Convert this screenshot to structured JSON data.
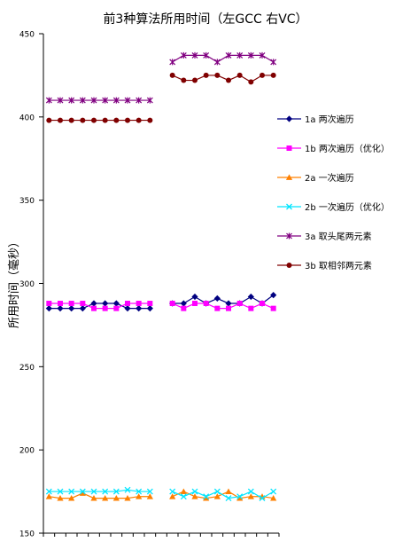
{
  "chart_data": {
    "type": "line",
    "title": "前3种算法所用时间（左GCC 右VC）",
    "xlabel": "",
    "ylabel": "所用时间（毫秒）",
    "ylim": [
      150,
      450
    ],
    "yticks": [
      150,
      200,
      250,
      300,
      350,
      400,
      450
    ],
    "grid": false,
    "legend_position": "right",
    "groups": [
      "GCC",
      "VC"
    ],
    "points_per_group": 10,
    "series": [
      {
        "name": "1a 两次遍历",
        "color": "#000080",
        "marker": "diamond",
        "values": [
          [
            285,
            285,
            285,
            285,
            288,
            288,
            288,
            285,
            285,
            285
          ],
          [
            288,
            288,
            292,
            288,
            291,
            288,
            288,
            292,
            288,
            293
          ]
        ]
      },
      {
        "name": "1b 两次遍历（优化）",
        "color": "#ff00ff",
        "marker": "square",
        "values": [
          [
            288,
            288,
            288,
            288,
            285,
            285,
            285,
            288,
            288,
            288
          ],
          [
            288,
            285,
            288,
            288,
            285,
            285,
            288,
            285,
            288,
            285
          ]
        ]
      },
      {
        "name": "2a 一次遍历",
        "color": "#ff8000",
        "marker": "triangle",
        "values": [
          [
            172,
            171,
            171,
            174,
            171,
            171,
            171,
            171,
            172,
            172
          ],
          [
            172,
            175,
            172,
            171,
            172,
            175,
            171,
            172,
            172,
            171
          ]
        ]
      },
      {
        "name": "2b 一次遍历（优化）",
        "color": "#00e5ff",
        "marker": "x",
        "values": [
          [
            175,
            175,
            175,
            175,
            175,
            175,
            175,
            176,
            175,
            175
          ],
          [
            175,
            172,
            175,
            172,
            175,
            171,
            172,
            175,
            171,
            175
          ]
        ]
      },
      {
        "name": "3a 取头尾两元素",
        "color": "#800080",
        "marker": "star",
        "values": [
          [
            410,
            410,
            410,
            410,
            410,
            410,
            410,
            410,
            410,
            410
          ],
          [
            433,
            437,
            437,
            437,
            433,
            437,
            437,
            437,
            437,
            433
          ]
        ]
      },
      {
        "name": "3b 取相邻两元素",
        "color": "#800000",
        "marker": "circle",
        "values": [
          [
            398,
            398,
            398,
            398,
            398,
            398,
            398,
            398,
            398,
            398
          ],
          [
            425,
            422,
            422,
            425,
            425,
            422,
            425,
            421,
            425,
            425
          ]
        ]
      }
    ]
  }
}
